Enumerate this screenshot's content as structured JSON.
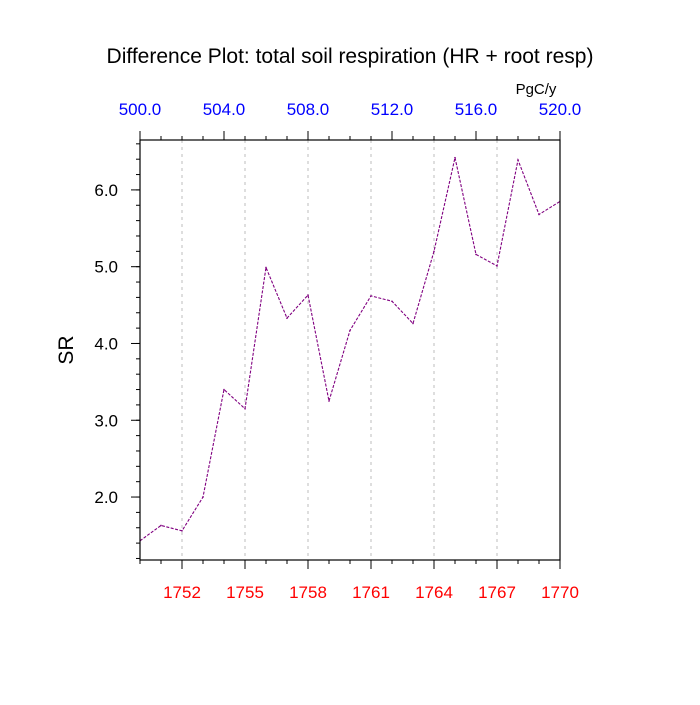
{
  "chart_data": {
    "type": "line",
    "title": "Difference Plot: total soil respiration (HR + root resp)",
    "units": "PgC/y",
    "ylabel": "SR",
    "x_bottom": {
      "ticks": [
        1752,
        1755,
        1758,
        1761,
        1764,
        1767,
        1770
      ],
      "tick_labels": [
        "1752",
        "1755",
        "1758",
        "1761",
        "1764",
        "1767",
        "1770"
      ],
      "range": [
        1750,
        1770
      ],
      "color": "#ff0000"
    },
    "x_top": {
      "ticks": [
        500.0,
        504.0,
        508.0,
        512.0,
        516.0,
        520.0
      ],
      "tick_labels": [
        "500.0",
        "504.0",
        "508.0",
        "512.0",
        "516.0",
        "520.0"
      ],
      "range": [
        500,
        520
      ],
      "color": "#0000ff"
    },
    "y": {
      "ticks": [
        2.0,
        3.0,
        4.0,
        5.0,
        6.0
      ],
      "tick_labels": [
        "2.0",
        "3.0",
        "4.0",
        "5.0",
        "6.0"
      ],
      "range": [
        1.18,
        6.65
      ]
    },
    "grid": "vertical dotted at bottom x ticks",
    "series": [
      {
        "color": "#800080",
        "x": [
          1750,
          1751,
          1752,
          1753,
          1754,
          1755,
          1756,
          1757,
          1758,
          1759,
          1760,
          1761,
          1762,
          1763,
          1764,
          1765,
          1766,
          1767,
          1768,
          1769,
          1770
        ],
        "y": [
          1.43,
          1.63,
          1.56,
          2.0,
          3.4,
          3.15,
          4.99,
          4.33,
          4.63,
          3.25,
          4.17,
          4.62,
          4.55,
          4.26,
          5.2,
          6.42,
          5.16,
          5.01,
          6.39,
          5.68,
          5.85
        ]
      }
    ]
  }
}
